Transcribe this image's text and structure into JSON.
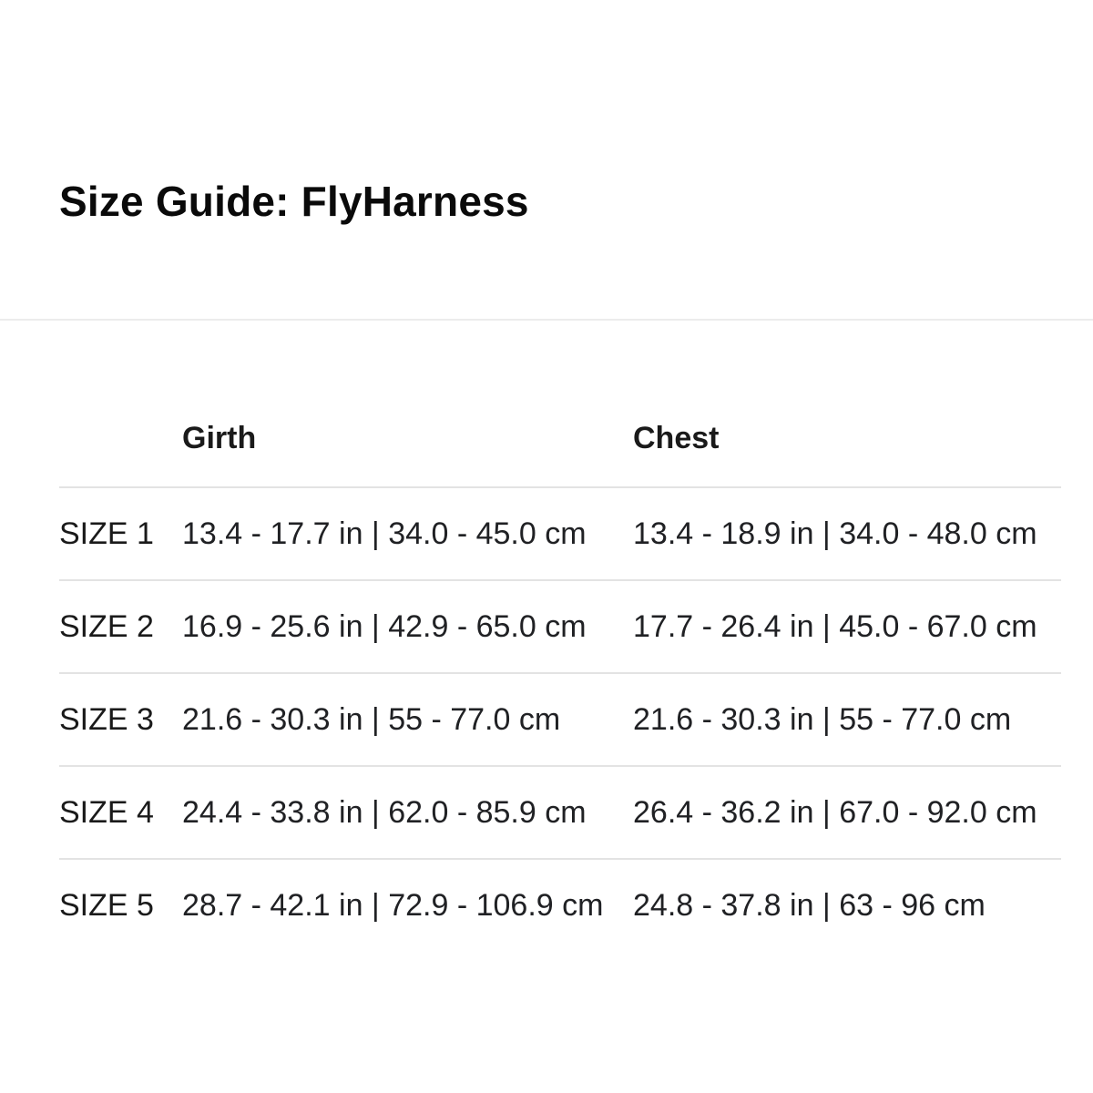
{
  "page": {
    "title": "Size Guide: FlyHarness"
  },
  "table": {
    "columns": [
      {
        "label": "Girth"
      },
      {
        "label": "Chest"
      }
    ],
    "rows": [
      {
        "size": "SIZE 1",
        "girth": "13.4 - 17.7 in | 34.0 - 45.0 cm",
        "chest": "13.4 - 18.9 in | 34.0 - 48.0 cm"
      },
      {
        "size": "SIZE 2",
        "girth": "16.9 - 25.6 in | 42.9 - 65.0 cm",
        "chest": "17.7 - 26.4 in | 45.0 - 67.0 cm"
      },
      {
        "size": "SIZE 3",
        "girth": "21.6 - 30.3 in | 55 - 77.0 cm",
        "chest": "21.6 - 30.3 in | 55 - 77.0 cm"
      },
      {
        "size": "SIZE 4",
        "girth": "24.4 - 33.8 in | 62.0 - 85.9 cm",
        "chest": "26.4 - 36.2 in | 67.0 - 92.0 cm"
      },
      {
        "size": "SIZE 5",
        "girth": "28.7 - 42.1 in | 72.9 - 106.9 cm",
        "chest": "24.8 - 37.8 in | 63 - 96 cm"
      }
    ]
  },
  "colors": {
    "text": "#202124",
    "divider": "#e3e3e3",
    "background": "#ffffff"
  }
}
